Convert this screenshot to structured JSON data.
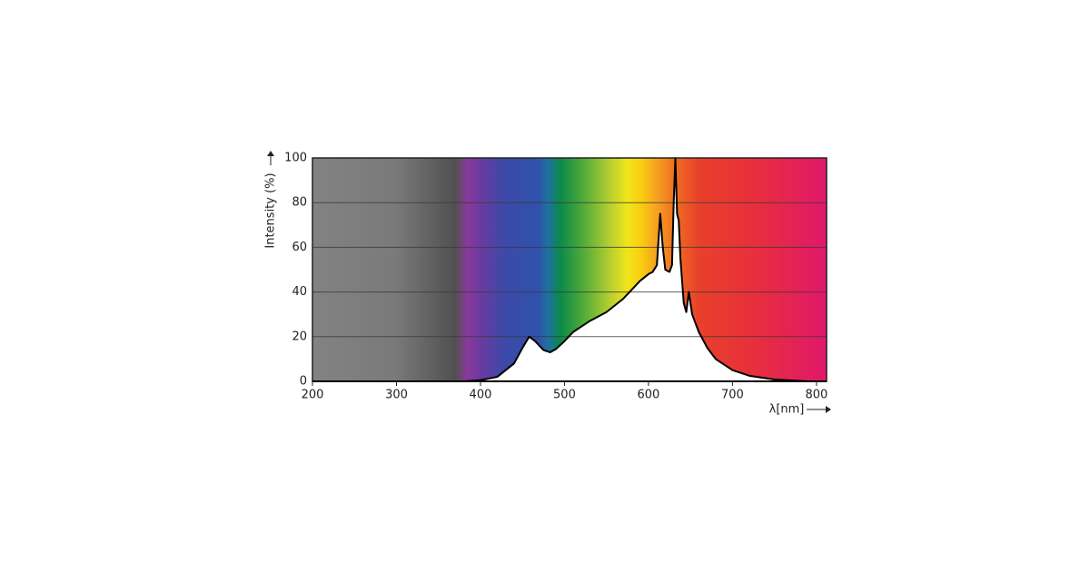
{
  "chart_data": {
    "type": "area",
    "xlabel": "λ[nm]",
    "ylabel": "Intensity (%)",
    "x": [
      380,
      400,
      420,
      440,
      450,
      458,
      465,
      475,
      483,
      490,
      500,
      510,
      530,
      550,
      570,
      590,
      600,
      605,
      610,
      614,
      617,
      620,
      625,
      628,
      630,
      632,
      634,
      636,
      638,
      642,
      645,
      648,
      652,
      660,
      670,
      680,
      700,
      720,
      750,
      790
    ],
    "values": [
      0,
      0.5,
      2,
      8,
      15,
      20,
      18,
      14,
      13,
      14.5,
      18,
      22,
      27,
      31,
      37,
      45,
      48,
      49,
      52,
      75,
      60,
      50,
      49,
      52,
      80,
      100,
      75,
      72,
      55,
      35,
      31,
      40,
      30,
      22,
      15,
      10,
      5,
      2.5,
      0.8,
      0
    ],
    "color": "#000000",
    "fill": "#ffffff",
    "xlim": [
      200,
      812
    ],
    "ylim": [
      0,
      100
    ],
    "xticks": [
      200,
      300,
      400,
      500,
      600,
      700,
      800
    ],
    "yticks": [
      0,
      20,
      40,
      60,
      80,
      100
    ],
    "grid": true
  }
}
